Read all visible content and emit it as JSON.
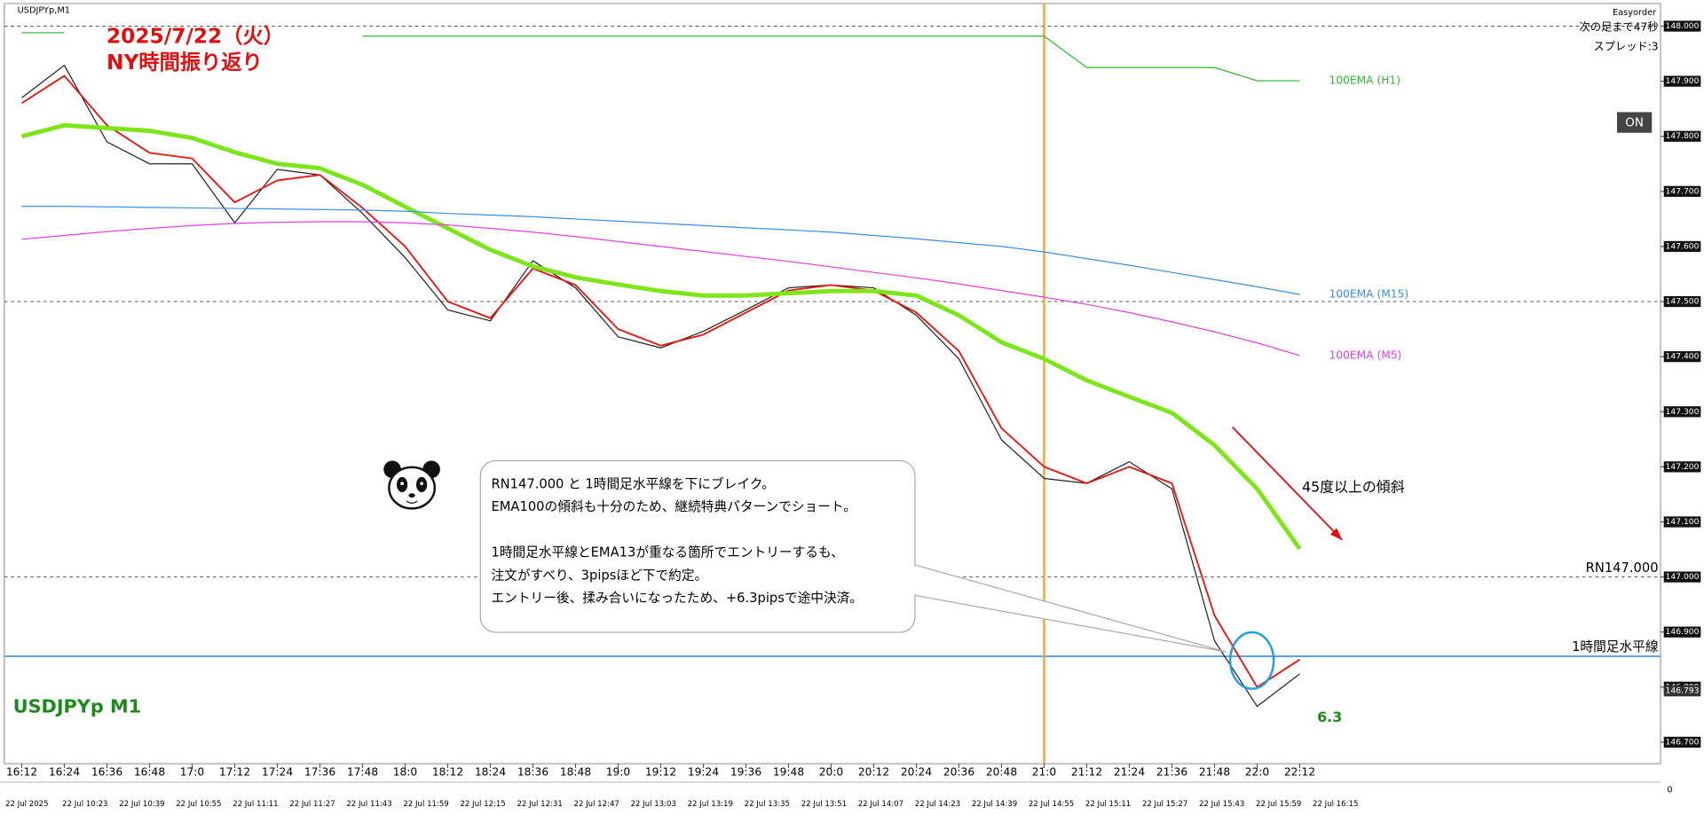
{
  "chart_data": {
    "type": "line",
    "window_title": "USDJPYp,M1",
    "title_lines": [
      "2025/7/22（火）",
      "NY時間振り返り"
    ],
    "symbol_label": "USDJPYp M1",
    "panel_name": "Easyorder",
    "countdown": "次の足まで47秒",
    "spread": "スプレッド:3",
    "button": "ON",
    "categories": [
      "16:12",
      "16:24",
      "16:36",
      "16:48",
      "17:0",
      "17:12",
      "17:24",
      "17:36",
      "17:48",
      "18:0",
      "18:12",
      "18:24",
      "18:36",
      "18:48",
      "19:0",
      "19:12",
      "19:24",
      "19:36",
      "19:48",
      "20:0",
      "20:12",
      "20:24",
      "20:36",
      "20:48",
      "21:0",
      "21:12",
      "21:24",
      "21:36",
      "21:48",
      "22:0",
      "22:12"
    ],
    "date_labels": [
      "22 Jul 2025",
      "22 Jul 10:23",
      "22 Jul 10:39",
      "22 Jul 10:55",
      "22 Jul 11:11",
      "22 Jul 11:27",
      "22 Jul 11:43",
      "22 Jul 11:59",
      "22 Jul 12:15",
      "22 Jul 12:31",
      "22 Jul 12:47",
      "22 Jul 13:03",
      "22 Jul 13:19",
      "22 Jul 13:35",
      "22 Jul 13:51",
      "22 Jul 14:07",
      "22 Jul 14:23",
      "22 Jul 14:39",
      "22 Jul 14:55",
      "22 Jul 15:11",
      "22 Jul 15:27",
      "22 Jul 15:43",
      "22 Jul 15:59",
      "22 Jul 16:15"
    ],
    "series": [
      {
        "color": "#222222",
        "width": 1,
        "values": [
          147.87,
          147.929,
          147.79,
          147.75,
          147.75,
          147.643,
          147.74,
          147.73,
          147.66,
          147.58,
          147.485,
          147.465,
          147.574,
          147.525,
          147.436,
          147.416,
          147.446,
          147.485,
          147.525,
          147.53,
          147.525,
          147.475,
          147.396,
          147.249,
          147.179,
          147.17,
          147.209,
          147.16,
          146.884,
          146.765,
          146.824
        ]
      },
      {
        "color": "#e8140c",
        "width": 1.5,
        "values": [
          147.86,
          147.91,
          147.82,
          147.77,
          147.76,
          147.68,
          147.72,
          147.73,
          147.67,
          147.6,
          147.5,
          147.47,
          147.56,
          147.53,
          147.45,
          147.42,
          147.44,
          147.48,
          147.52,
          147.53,
          147.52,
          147.48,
          147.41,
          147.27,
          147.2,
          147.17,
          147.2,
          147.17,
          146.93,
          146.8,
          146.85
        ]
      },
      {
        "color": "#7de61a",
        "width": 4,
        "values": [
          147.8,
          147.82,
          147.815,
          147.81,
          147.797,
          147.771,
          147.75,
          147.742,
          147.712,
          147.672,
          147.633,
          147.594,
          147.564,
          147.544,
          147.531,
          147.519,
          147.511,
          147.511,
          147.515,
          147.519,
          147.519,
          147.511,
          147.475,
          147.426,
          147.396,
          147.357,
          147.327,
          147.298,
          147.239,
          147.16,
          147.051
        ]
      },
      {
        "name": "100EMA (H1)",
        "color": "#2eb82e",
        "width": 1,
        "values": [
          147.988,
          147.988,
          null,
          null,
          null,
          null,
          null,
          null,
          147.982,
          147.982,
          147.982,
          147.982,
          147.982,
          147.982,
          147.982,
          147.982,
          147.982,
          147.982,
          147.982,
          147.982,
          147.982,
          147.982,
          147.982,
          147.982,
          147.982,
          147.925,
          147.925,
          147.925,
          147.925,
          147.901,
          147.901
        ]
      },
      {
        "name": "100EMA (M15)",
        "color": "#3a8ee6",
        "width": 1,
        "values": [
          147.673,
          147.673,
          147.672,
          147.671,
          147.67,
          147.669,
          147.668,
          147.667,
          147.666,
          147.664,
          147.66,
          147.657,
          147.654,
          147.65,
          147.646,
          147.642,
          147.638,
          147.634,
          147.63,
          147.626,
          147.62,
          147.614,
          147.607,
          147.6,
          147.59,
          147.578,
          147.566,
          147.553,
          147.54,
          147.527,
          147.513
        ]
      },
      {
        "name": "100EMA (M5)",
        "color": "#e040e0",
        "width": 1,
        "values": [
          147.613,
          147.62,
          147.627,
          147.633,
          147.638,
          147.642,
          147.644,
          147.645,
          147.645,
          147.643,
          147.639,
          147.633,
          147.626,
          147.618,
          147.609,
          147.6,
          147.591,
          147.582,
          147.573,
          147.563,
          147.553,
          147.543,
          147.532,
          147.52,
          147.508,
          147.495,
          147.48,
          147.463,
          147.445,
          147.425,
          147.402
        ]
      }
    ],
    "ylim": [
      146.661,
      148.047
    ],
    "yticks": [
      {
        "value": 146.7,
        "label": "146.700"
      },
      {
        "value": 146.8,
        "label": "146.800"
      },
      {
        "value": 146.9,
        "label": "146.900"
      },
      {
        "value": 147.0,
        "label": "147.000"
      },
      {
        "value": 147.1,
        "label": "147.100"
      },
      {
        "value": 147.2,
        "label": "147.200"
      },
      {
        "value": 147.3,
        "label": "147.300"
      },
      {
        "value": 147.4,
        "label": "147.400"
      },
      {
        "value": 147.5,
        "label": "147.500"
      },
      {
        "value": 147.6,
        "label": "147.600"
      },
      {
        "value": 147.7,
        "label": "147.700"
      },
      {
        "value": 147.8,
        "label": "147.800"
      },
      {
        "value": 147.9,
        "label": "147.900"
      },
      {
        "value": 148.0,
        "label": "148.000"
      }
    ],
    "last_price": 146.793,
    "hlines": [
      {
        "value": 148.0,
        "color": "#555555",
        "dashed": true
      },
      {
        "value": 147.5,
        "color": "#555555",
        "dashed": true
      },
      {
        "value": 147.0,
        "color": "#555555",
        "dashed": true,
        "label": "RN147.000"
      },
      {
        "value": 146.856,
        "color": "#3a8ee6",
        "dashed": false,
        "label": "1時間足水平線"
      }
    ],
    "vline": {
      "at": "21:0",
      "color": "#f5a623"
    },
    "note": [
      [
        "RN147.000 と 1時間足水平線を下にブレイク。",
        "EMA100の傾斜も十分のため、継続特典パターンでショート。"
      ],
      [
        "1時間足水平線とEMA13が重なる箇所でエントリーするも、",
        "注文がすべり、3pipsほど下で約定。",
        "エントリー後、揉み合いになったため、+6.3pipsで途中決済。"
      ]
    ],
    "slope_note": "45度以上の傾斜",
    "result_pips": 6.3,
    "sub_axis_zero": 0
  }
}
